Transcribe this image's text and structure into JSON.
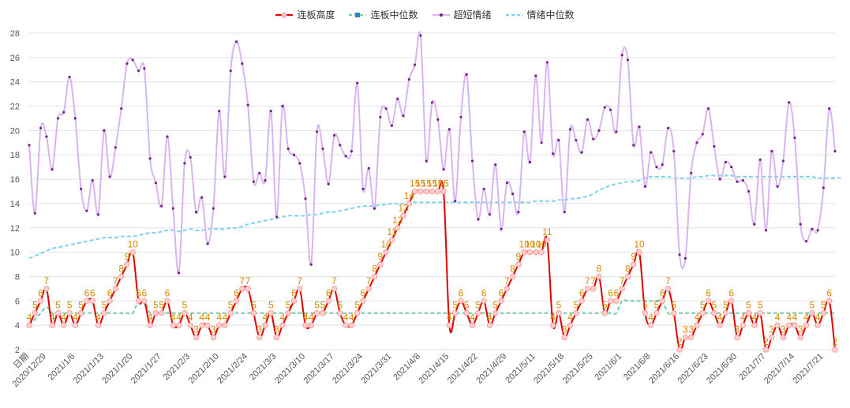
{
  "chart_data": {
    "type": "line",
    "title": "",
    "xlabel": "",
    "ylabel": "",
    "ylim": [
      2,
      28
    ],
    "yticks": [
      2,
      4,
      6,
      8,
      10,
      12,
      14,
      16,
      18,
      20,
      22,
      24,
      26,
      28
    ],
    "first_category_label": "日期",
    "tick_labels": [
      "2020/12/29",
      "2021/1/6",
      "2021/1/13",
      "2021/1/20",
      "2021/1/27",
      "2021/2/3",
      "2021/2/10",
      "2021/2/24",
      "2021/3/3",
      "2021/3/10",
      "2021/3/17",
      "2021/3/24",
      "2021/3/31",
      "2021/4/8",
      "2021/4/15",
      "2021/4/22",
      "2021/4/29",
      "2021/5/11",
      "2021/5/18",
      "2021/5/25",
      "2021/6/1",
      "2021/6/8",
      "2021/6/16",
      "2021/6/23",
      "2021/6/30",
      "2021/7/7",
      "2021/7/14",
      "2021/7/21"
    ],
    "tick_indices": [
      3,
      8,
      13,
      18,
      23,
      28,
      33,
      38,
      43,
      48,
      53,
      58,
      63,
      68,
      73,
      78,
      83,
      88,
      93,
      98,
      103,
      108,
      113,
      118,
      123,
      128,
      133,
      138
    ],
    "legend_position": "top",
    "grid": true,
    "colors": {
      "lianban": "#e00000",
      "lianban_median": "#2e86c1",
      "emotion": "#bf6ad6",
      "emotion_median": "#33c7e6",
      "lianban_labels": "#d68a00",
      "axis_text": "#555555"
    },
    "series": [
      {
        "name": "连板高度",
        "values": [
          4,
          5,
          6,
          7,
          4,
          5,
          4,
          5,
          4,
          5,
          6,
          6,
          4,
          5,
          6,
          7,
          8,
          9,
          10,
          6,
          6,
          4,
          5,
          5,
          6,
          4,
          4,
          5,
          4,
          3,
          4,
          4,
          3,
          4,
          4,
          5,
          6,
          7,
          7,
          5,
          3,
          4,
          5,
          3,
          4,
          5,
          6,
          7,
          4,
          4,
          5,
          5,
          6,
          7,
          5,
          4,
          4,
          5,
          6,
          7,
          8,
          9,
          10,
          11,
          12,
          13,
          14,
          15,
          15,
          15,
          15,
          15,
          15,
          4,
          5,
          6,
          5,
          4,
          5,
          6,
          4,
          5,
          6,
          7,
          8,
          9,
          10,
          10,
          10,
          10,
          11,
          4,
          5,
          3,
          4,
          5,
          6,
          7,
          7,
          8,
          5,
          6,
          6,
          7,
          8,
          9,
          10,
          5,
          4,
          5,
          6,
          7,
          5,
          2,
          3,
          3,
          4,
          5,
          6,
          5,
          4,
          5,
          6,
          3,
          4,
          5,
          4,
          5,
          2,
          3,
          4,
          3,
          4,
          4,
          3,
          4,
          5,
          4,
          5,
          6,
          2
        ],
        "labels_visible": true
      },
      {
        "name": "连板中位数",
        "values": [
          4,
          4.5,
          5,
          5.5,
          5,
          5,
          5,
          5,
          5,
          5,
          5,
          5,
          5,
          5,
          5,
          5,
          5,
          5,
          5,
          6,
          6,
          5,
          5,
          5,
          5,
          5,
          5,
          5,
          5,
          5,
          5,
          5,
          5,
          5,
          5,
          5,
          5,
          5,
          5,
          5,
          5,
          5,
          5,
          5,
          5,
          5,
          5,
          5,
          5,
          5,
          5,
          5,
          5,
          5,
          5,
          5,
          5,
          5,
          5,
          5,
          5,
          5,
          5,
          5,
          5,
          5,
          5,
          5,
          5,
          5,
          5,
          5,
          5,
          5,
          5,
          5,
          5,
          5,
          5,
          5,
          5,
          5,
          5,
          5,
          5,
          5,
          5,
          5,
          5,
          5,
          5,
          5,
          5,
          5,
          5,
          5,
          5,
          5,
          5,
          5,
          5,
          5,
          5,
          6,
          6,
          6,
          6,
          6,
          6,
          6,
          6,
          5,
          5,
          5,
          5,
          5,
          5,
          5,
          5,
          5,
          5,
          5,
          5,
          5,
          5,
          5,
          5,
          5,
          5,
          5,
          5,
          5,
          5,
          5,
          5,
          5,
          5,
          5,
          5,
          5,
          5
        ]
      },
      {
        "name": "超短情绪",
        "values": [
          18.8,
          13.2,
          20.2,
          19.5,
          16.8,
          21,
          21.5,
          24.4,
          21,
          15.2,
          13.4,
          15.9,
          13.1,
          20,
          16.2,
          18.6,
          21.8,
          25.5,
          25.8,
          24.9,
          25.1,
          17.7,
          15.7,
          13.8,
          19.5,
          13.6,
          8.3,
          17.3,
          17.8,
          13.3,
          14.5,
          10.7,
          13.6,
          21.6,
          16.2,
          24.9,
          27.3,
          25.5,
          22.1,
          15.8,
          16.5,
          15.9,
          21.6,
          12.9,
          22,
          18.5,
          18,
          17.3,
          14.4,
          9,
          19.9,
          18.5,
          15.6,
          19.6,
          18.8,
          17.9,
          18.3,
          23.9,
          15.2,
          16.9,
          13.6,
          21.1,
          21.8,
          20.4,
          22.6,
          21.2,
          24.2,
          25.4,
          27.8,
          17.5,
          22.3,
          20.9,
          16.8,
          20.1,
          14.2,
          21.1,
          24.6,
          17.5,
          12.7,
          15.2,
          13.1,
          17.2,
          11.9,
          15.7,
          14.8,
          13.3,
          19.9,
          17.4,
          24.5,
          19,
          25.6,
          18.1,
          19.2,
          13.3,
          20.1,
          19.2,
          18.2,
          20.9,
          19.3,
          20,
          21.9,
          21.7,
          19.9,
          26.2,
          25.8,
          18.8,
          20.3,
          15.4,
          18.2,
          17,
          17.2,
          20.2,
          18.3,
          9.8,
          9.5,
          16.5,
          19,
          19.7,
          21.8,
          18.7,
          16,
          17.4,
          17,
          15.8,
          15.9,
          15,
          12.3,
          17.6,
          11.8,
          18.3,
          15.4,
          17.5,
          22.3,
          19.4,
          12.3,
          10.9,
          11.9,
          11.8,
          15.3,
          21.8,
          18.3
        ]
      },
      {
        "name": "情绪中位数",
        "values": [
          9.5,
          9.7,
          9.9,
          10.1,
          10.3,
          10.4,
          10.5,
          10.6,
          10.7,
          10.8,
          10.9,
          11,
          11.1,
          11.2,
          11.2,
          11.2,
          11.3,
          11.3,
          11.3,
          11.4,
          11.5,
          11.6,
          11.6,
          11.7,
          11.8,
          11.8,
          11.7,
          11.8,
          11.9,
          11.8,
          11.8,
          11.9,
          11.9,
          11.9,
          11.9,
          12,
          12,
          12.1,
          12.3,
          12.4,
          12.5,
          12.6,
          12.7,
          12.8,
          12.9,
          13,
          13,
          13,
          13,
          13.1,
          13.1,
          13.2,
          13.3,
          13.3,
          13.4,
          13.5,
          13.6,
          13.7,
          13.8,
          13.8,
          13.8,
          13.9,
          13.9,
          14,
          14,
          14,
          14.1,
          14.1,
          14.1,
          14.1,
          14.1,
          14.1,
          14.1,
          14.1,
          14.1,
          14.1,
          14.1,
          14.1,
          14.1,
          14.1,
          14.1,
          14.1,
          14.1,
          14.1,
          14.1,
          14.1,
          14.1,
          14.1,
          14.2,
          14.2,
          14.2,
          14.2,
          14.3,
          14.3,
          14.4,
          14.4,
          14.5,
          14.6,
          14.8,
          15.1,
          15.3,
          15.5,
          15.6,
          15.7,
          15.8,
          15.8,
          15.9,
          16.1,
          16.2,
          16.2,
          16.2,
          16.2,
          16.1,
          16.1,
          16.1,
          16.1,
          16.2,
          16.2,
          16.3,
          16.3,
          16.3,
          16.3,
          16.3,
          16.2,
          16.2,
          16.2,
          16.2,
          16.2,
          16.2,
          16.2,
          16.2,
          16.2,
          16.2,
          16.2,
          16.2,
          16.2,
          16.2,
          16.1,
          16.1,
          16.1,
          16.1,
          16.1
        ]
      }
    ]
  }
}
